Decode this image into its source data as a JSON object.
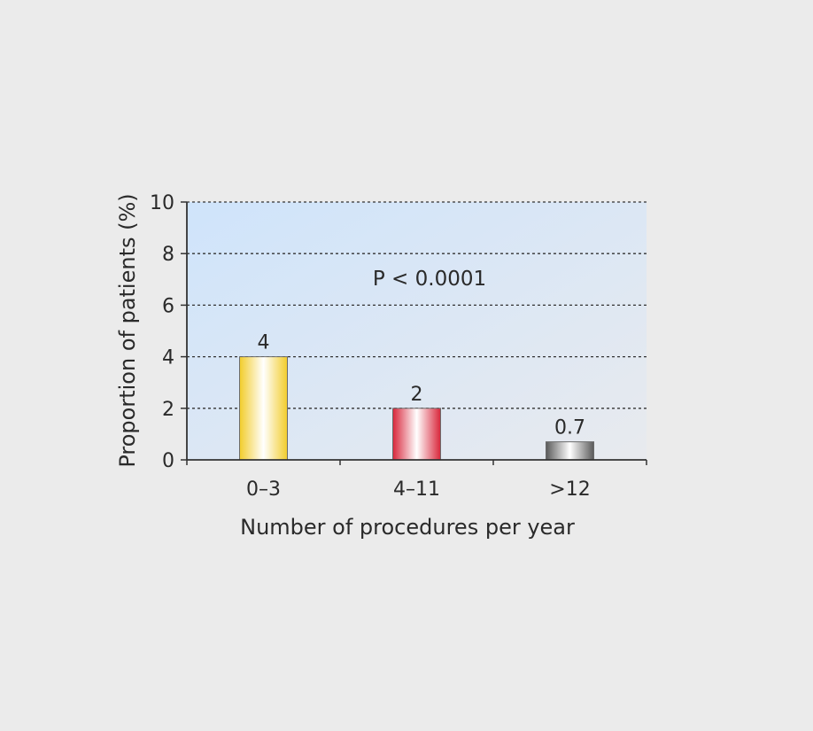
{
  "chart_data": {
    "type": "bar",
    "categories": [
      "0–3",
      "4–11",
      ">12"
    ],
    "values": [
      4,
      2,
      0.7
    ],
    "data_labels": [
      "4",
      "2",
      "0.7"
    ],
    "bar_colors": [
      "#f2cc2a",
      "#d8263a",
      "#5a5a5a"
    ],
    "xlabel": "Number of procedures per year",
    "ylabel": "Proportion of patients (%)",
    "ylim": [
      0,
      10
    ],
    "yticks": [
      0,
      2,
      4,
      6,
      8,
      10
    ],
    "ytick_labels": [
      "0",
      "2",
      "4",
      "6",
      "8",
      "10"
    ],
    "grid": "horizontal dotted",
    "annotation": "P < 0.0001",
    "background_gradient": [
      "#cfe4fb",
      "#e8eaee"
    ]
  }
}
